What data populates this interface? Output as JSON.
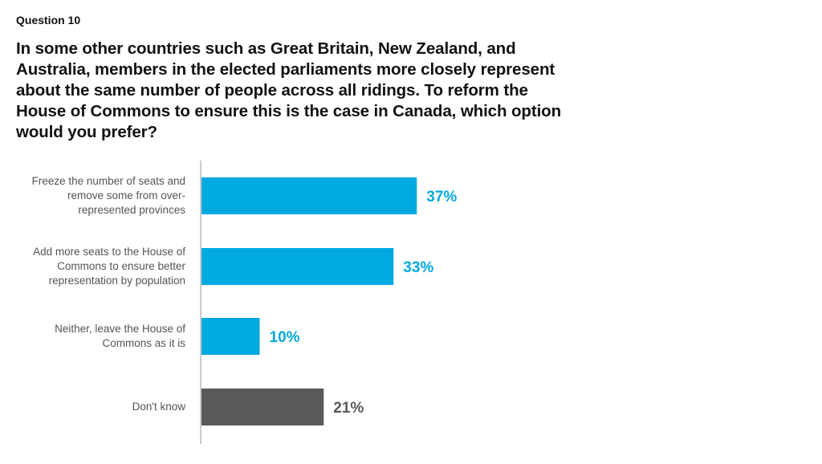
{
  "header": {
    "question_number": "Question 10",
    "question_text": "In some other countries such as Great Britain, New Zealand, and Australia, members in the elected parliaments more closely represent about the same number of people across all ridings. To reform the House of Commons to ensure this is the case in Canada, which option would you prefer?"
  },
  "chart_data": {
    "type": "bar",
    "orientation": "horizontal",
    "categories": [
      "Freeze the number of seats and remove some from over-represented provinces",
      "Add more seats to the House of Commons to ensure better representation by population",
      "Neither, leave the House of Commons as it is",
      "Don't know"
    ],
    "values": [
      37,
      33,
      10,
      21
    ],
    "data_labels": [
      "37%",
      "33%",
      "10%",
      "21%"
    ],
    "colors": [
      "#00a9e0",
      "#00a9e0",
      "#00a9e0",
      "#58595b"
    ],
    "unit": "%",
    "xlim": [
      0,
      100
    ],
    "grid": false
  }
}
